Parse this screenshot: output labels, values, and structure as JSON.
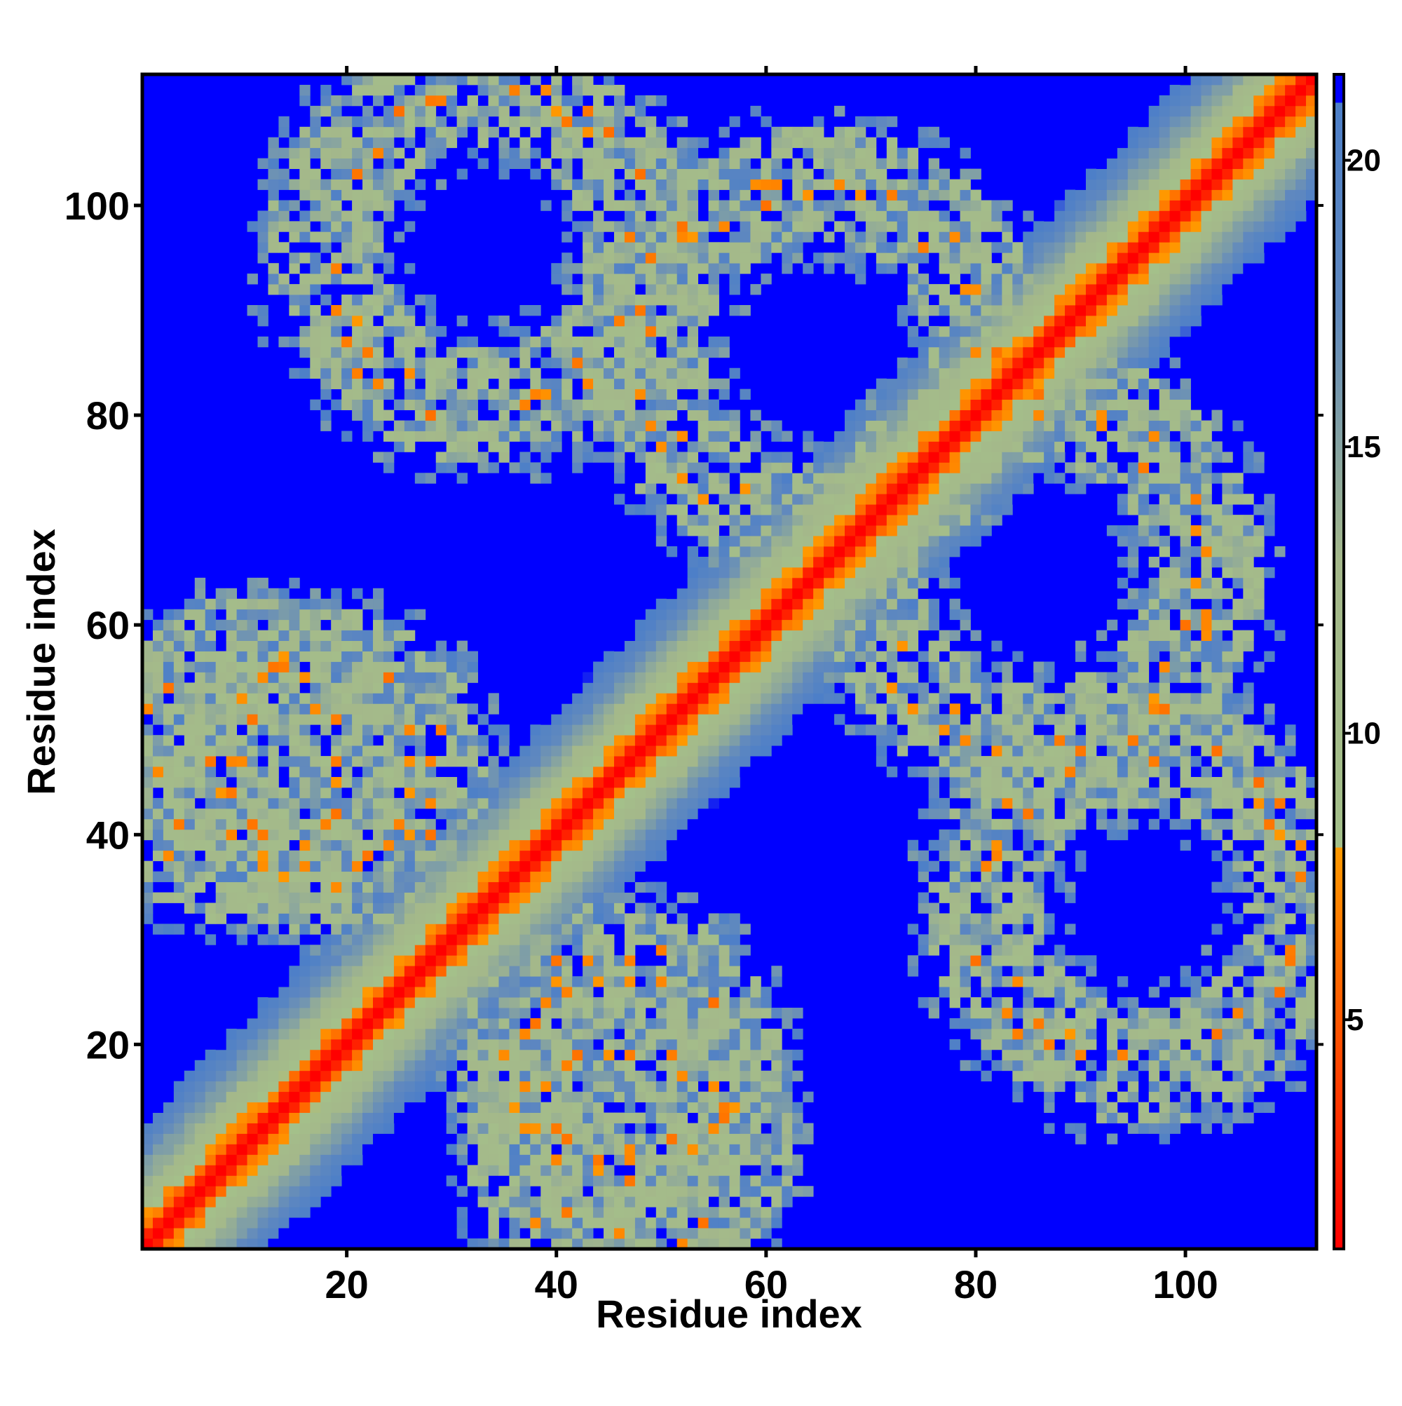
{
  "chart_data": {
    "type": "heatmap",
    "title": "",
    "xlabel": "Residue index",
    "ylabel": "Residue index",
    "n_residues": 112,
    "xlim": [
      0.5,
      112.5
    ],
    "ylim": [
      0.5,
      112.5
    ],
    "x_ticks": [
      20,
      40,
      60,
      80,
      100
    ],
    "y_ticks": [
      20,
      40,
      60,
      80,
      100
    ],
    "grid": false,
    "legend": "none",
    "colorbar": {
      "position": "right",
      "range": [
        1,
        21.5
      ],
      "ticks": [
        5,
        10,
        15,
        20
      ],
      "stops": [
        {
          "value": 1.0,
          "color": "#ff0000"
        },
        {
          "value": 8.0,
          "color": "#ff9900"
        },
        {
          "value": 8.01,
          "color": "#a4c08a"
        },
        {
          "value": 13.0,
          "color": "#a4b88a"
        },
        {
          "value": 17.5,
          "color": "#5f88bf"
        },
        {
          "value": 21.0,
          "color": "#4d7fc8"
        },
        {
          "value": 21.01,
          "color": "#0000ff"
        }
      ]
    },
    "diagonal_band": {
      "red_within": 1,
      "orange_within": 3,
      "light_within": 7,
      "fade_within": 12
    },
    "contact_rings": [
      {
        "center": [
          10,
          47
        ],
        "radius": 10
      },
      {
        "center": [
          47,
          10
        ],
        "radius": 10
      },
      {
        "center": [
          33,
          96
        ],
        "radius": 15
      },
      {
        "center": [
          96,
          33
        ],
        "radius": 15
      },
      {
        "center": [
          65,
          86
        ],
        "radius": 16
      },
      {
        "center": [
          86,
          65
        ],
        "radius": 16
      },
      {
        "center": [
          46,
          18
        ],
        "radius": 10
      },
      {
        "center": [
          18,
          46
        ],
        "radius": 10
      }
    ],
    "background_value": 22
  }
}
